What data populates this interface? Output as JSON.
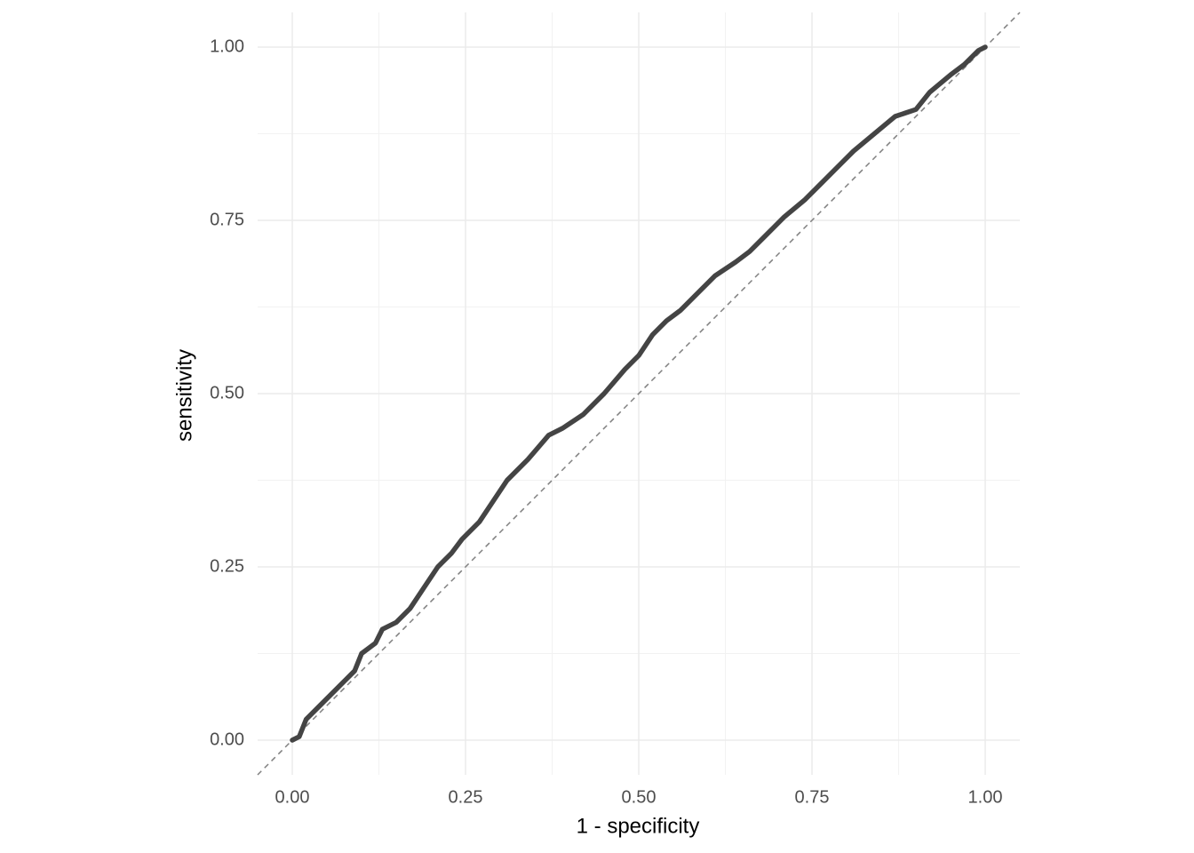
{
  "chart_data": {
    "type": "line",
    "xlabel": "1 - specificity",
    "ylabel": "sensitivity",
    "xlim": [
      -0.05,
      1.05
    ],
    "ylim": [
      -0.05,
      1.05
    ],
    "xticks": [
      {
        "value": 0,
        "label": "0.00"
      },
      {
        "value": 0.25,
        "label": "0.25"
      },
      {
        "value": 0.5,
        "label": "0.50"
      },
      {
        "value": 0.75,
        "label": "0.75"
      },
      {
        "value": 1,
        "label": "1.00"
      }
    ],
    "yticks": [
      {
        "value": 0,
        "label": "0.00"
      },
      {
        "value": 0.25,
        "label": "0.25"
      },
      {
        "value": 0.5,
        "label": "0.50"
      },
      {
        "value": 0.75,
        "label": "0.75"
      },
      {
        "value": 1,
        "label": "1.00"
      }
    ],
    "minor_xticks": [
      0.125,
      0.375,
      0.625,
      0.875
    ],
    "minor_yticks": [
      0.125,
      0.375,
      0.625,
      0.875
    ],
    "grid": true,
    "reference_line": {
      "slope": 1,
      "intercept": 0,
      "color": "#808080"
    },
    "series": [
      {
        "color": "#444444",
        "x": [
          0,
          0.01,
          0.02,
          0.04,
          0.07,
          0.09,
          0.1,
          0.12,
          0.13,
          0.15,
          0.17,
          0.19,
          0.21,
          0.23,
          0.245,
          0.27,
          0.29,
          0.31,
          0.34,
          0.37,
          0.39,
          0.42,
          0.45,
          0.48,
          0.5,
          0.52,
          0.54,
          0.56,
          0.58,
          0.61,
          0.64,
          0.66,
          0.68,
          0.71,
          0.74,
          0.76,
          0.79,
          0.81,
          0.84,
          0.87,
          0.9,
          0.92,
          0.95,
          0.97,
          0.99,
          1
        ],
        "values": [
          0,
          0.005,
          0.03,
          0.05,
          0.08,
          0.1,
          0.125,
          0.14,
          0.16,
          0.17,
          0.19,
          0.22,
          0.25,
          0.27,
          0.29,
          0.315,
          0.345,
          0.375,
          0.405,
          0.44,
          0.45,
          0.47,
          0.5,
          0.535,
          0.555,
          0.585,
          0.605,
          0.62,
          0.64,
          0.67,
          0.69,
          0.705,
          0.725,
          0.755,
          0.78,
          0.8,
          0.83,
          0.85,
          0.875,
          0.9,
          0.91,
          0.935,
          0.96,
          0.975,
          0.995,
          1
        ]
      }
    ]
  }
}
